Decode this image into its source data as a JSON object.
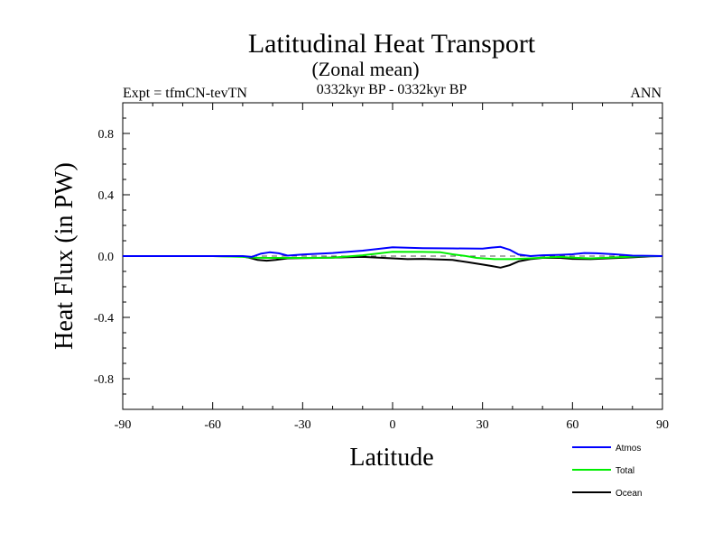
{
  "chart_data": {
    "type": "line",
    "title": "Latitudinal Heat Transport",
    "subtitle": "(Zonal mean)",
    "left_note": "Expt = tfmCN-tevTN",
    "center_note": "0332kyr BP - 0332kyr BP",
    "right_note": "ANN",
    "xlabel": "Latitude",
    "ylabel": "Heat Flux (in PW)",
    "xlim": [
      -90,
      90
    ],
    "ylim": [
      -1.0,
      1.0
    ],
    "x_ticks": [
      -90,
      -60,
      -30,
      0,
      30,
      60,
      90
    ],
    "x_tick_labels": [
      "-90",
      "-60",
      "-30",
      "0",
      "30",
      "60",
      "90"
    ],
    "y_ticks": [
      0.8,
      0.4,
      0.0,
      -0.4,
      -0.8
    ],
    "y_tick_labels": [
      "0.8",
      "0.4",
      "0.0",
      "-0.4",
      "-0.8"
    ],
    "zero_line": true,
    "series": [
      {
        "name": "Atmos",
        "color": "#0000ff",
        "x": [
          -90,
          -80,
          -70,
          -60,
          -50,
          -47,
          -44,
          -41,
          -38,
          -35,
          -30,
          -20,
          -10,
          0,
          10,
          20,
          30,
          33,
          36,
          39,
          42,
          46,
          50,
          56,
          60,
          64,
          68,
          74,
          80,
          86,
          90
        ],
        "y": [
          0.0,
          0.0,
          0.0,
          0.0,
          0.0,
          -0.005,
          0.015,
          0.025,
          0.018,
          0.003,
          0.01,
          0.02,
          0.035,
          0.057,
          0.052,
          0.05,
          0.048,
          0.055,
          0.06,
          0.042,
          0.01,
          0.0,
          0.005,
          0.008,
          0.012,
          0.02,
          0.018,
          0.012,
          0.003,
          0.001,
          0.0
        ]
      },
      {
        "name": "Total",
        "color": "#00ee00",
        "x": [
          -90,
          -80,
          -70,
          -60,
          -54,
          -50,
          -46,
          -42,
          -38,
          -34,
          -30,
          -20,
          -10,
          0,
          10,
          16,
          20,
          24,
          28,
          34,
          40,
          46,
          50,
          56,
          60,
          66,
          72,
          78,
          84,
          90
        ],
        "y": [
          0.0,
          0.0,
          0.0,
          0.0,
          -0.003,
          -0.005,
          -0.01,
          -0.012,
          -0.012,
          -0.012,
          -0.012,
          -0.01,
          0.005,
          0.028,
          0.027,
          0.025,
          0.012,
          0.002,
          -0.012,
          -0.02,
          -0.02,
          -0.015,
          -0.01,
          -0.005,
          -0.01,
          -0.015,
          -0.01,
          -0.005,
          0.0,
          0.0
        ]
      },
      {
        "name": "Ocean",
        "color": "#000000",
        "x": [
          -90,
          -80,
          -70,
          -60,
          -50,
          -48,
          -45,
          -42,
          -39,
          -35,
          -30,
          -20,
          -10,
          0,
          5,
          10,
          20,
          25,
          30,
          33,
          36,
          39,
          42,
          46,
          50,
          56,
          60,
          66,
          72,
          80,
          86,
          90
        ],
        "y": [
          0.0,
          0.0,
          0.0,
          0.0,
          -0.003,
          -0.01,
          -0.025,
          -0.03,
          -0.025,
          -0.015,
          -0.013,
          -0.01,
          -0.005,
          -0.015,
          -0.02,
          -0.018,
          -0.025,
          -0.04,
          -0.055,
          -0.065,
          -0.075,
          -0.06,
          -0.035,
          -0.02,
          -0.012,
          -0.012,
          -0.018,
          -0.02,
          -0.015,
          -0.008,
          -0.002,
          0.0
        ]
      }
    ],
    "legend": {
      "placement": "bottom-right",
      "entries": [
        "Atmos",
        "Total",
        "Ocean"
      ]
    }
  }
}
